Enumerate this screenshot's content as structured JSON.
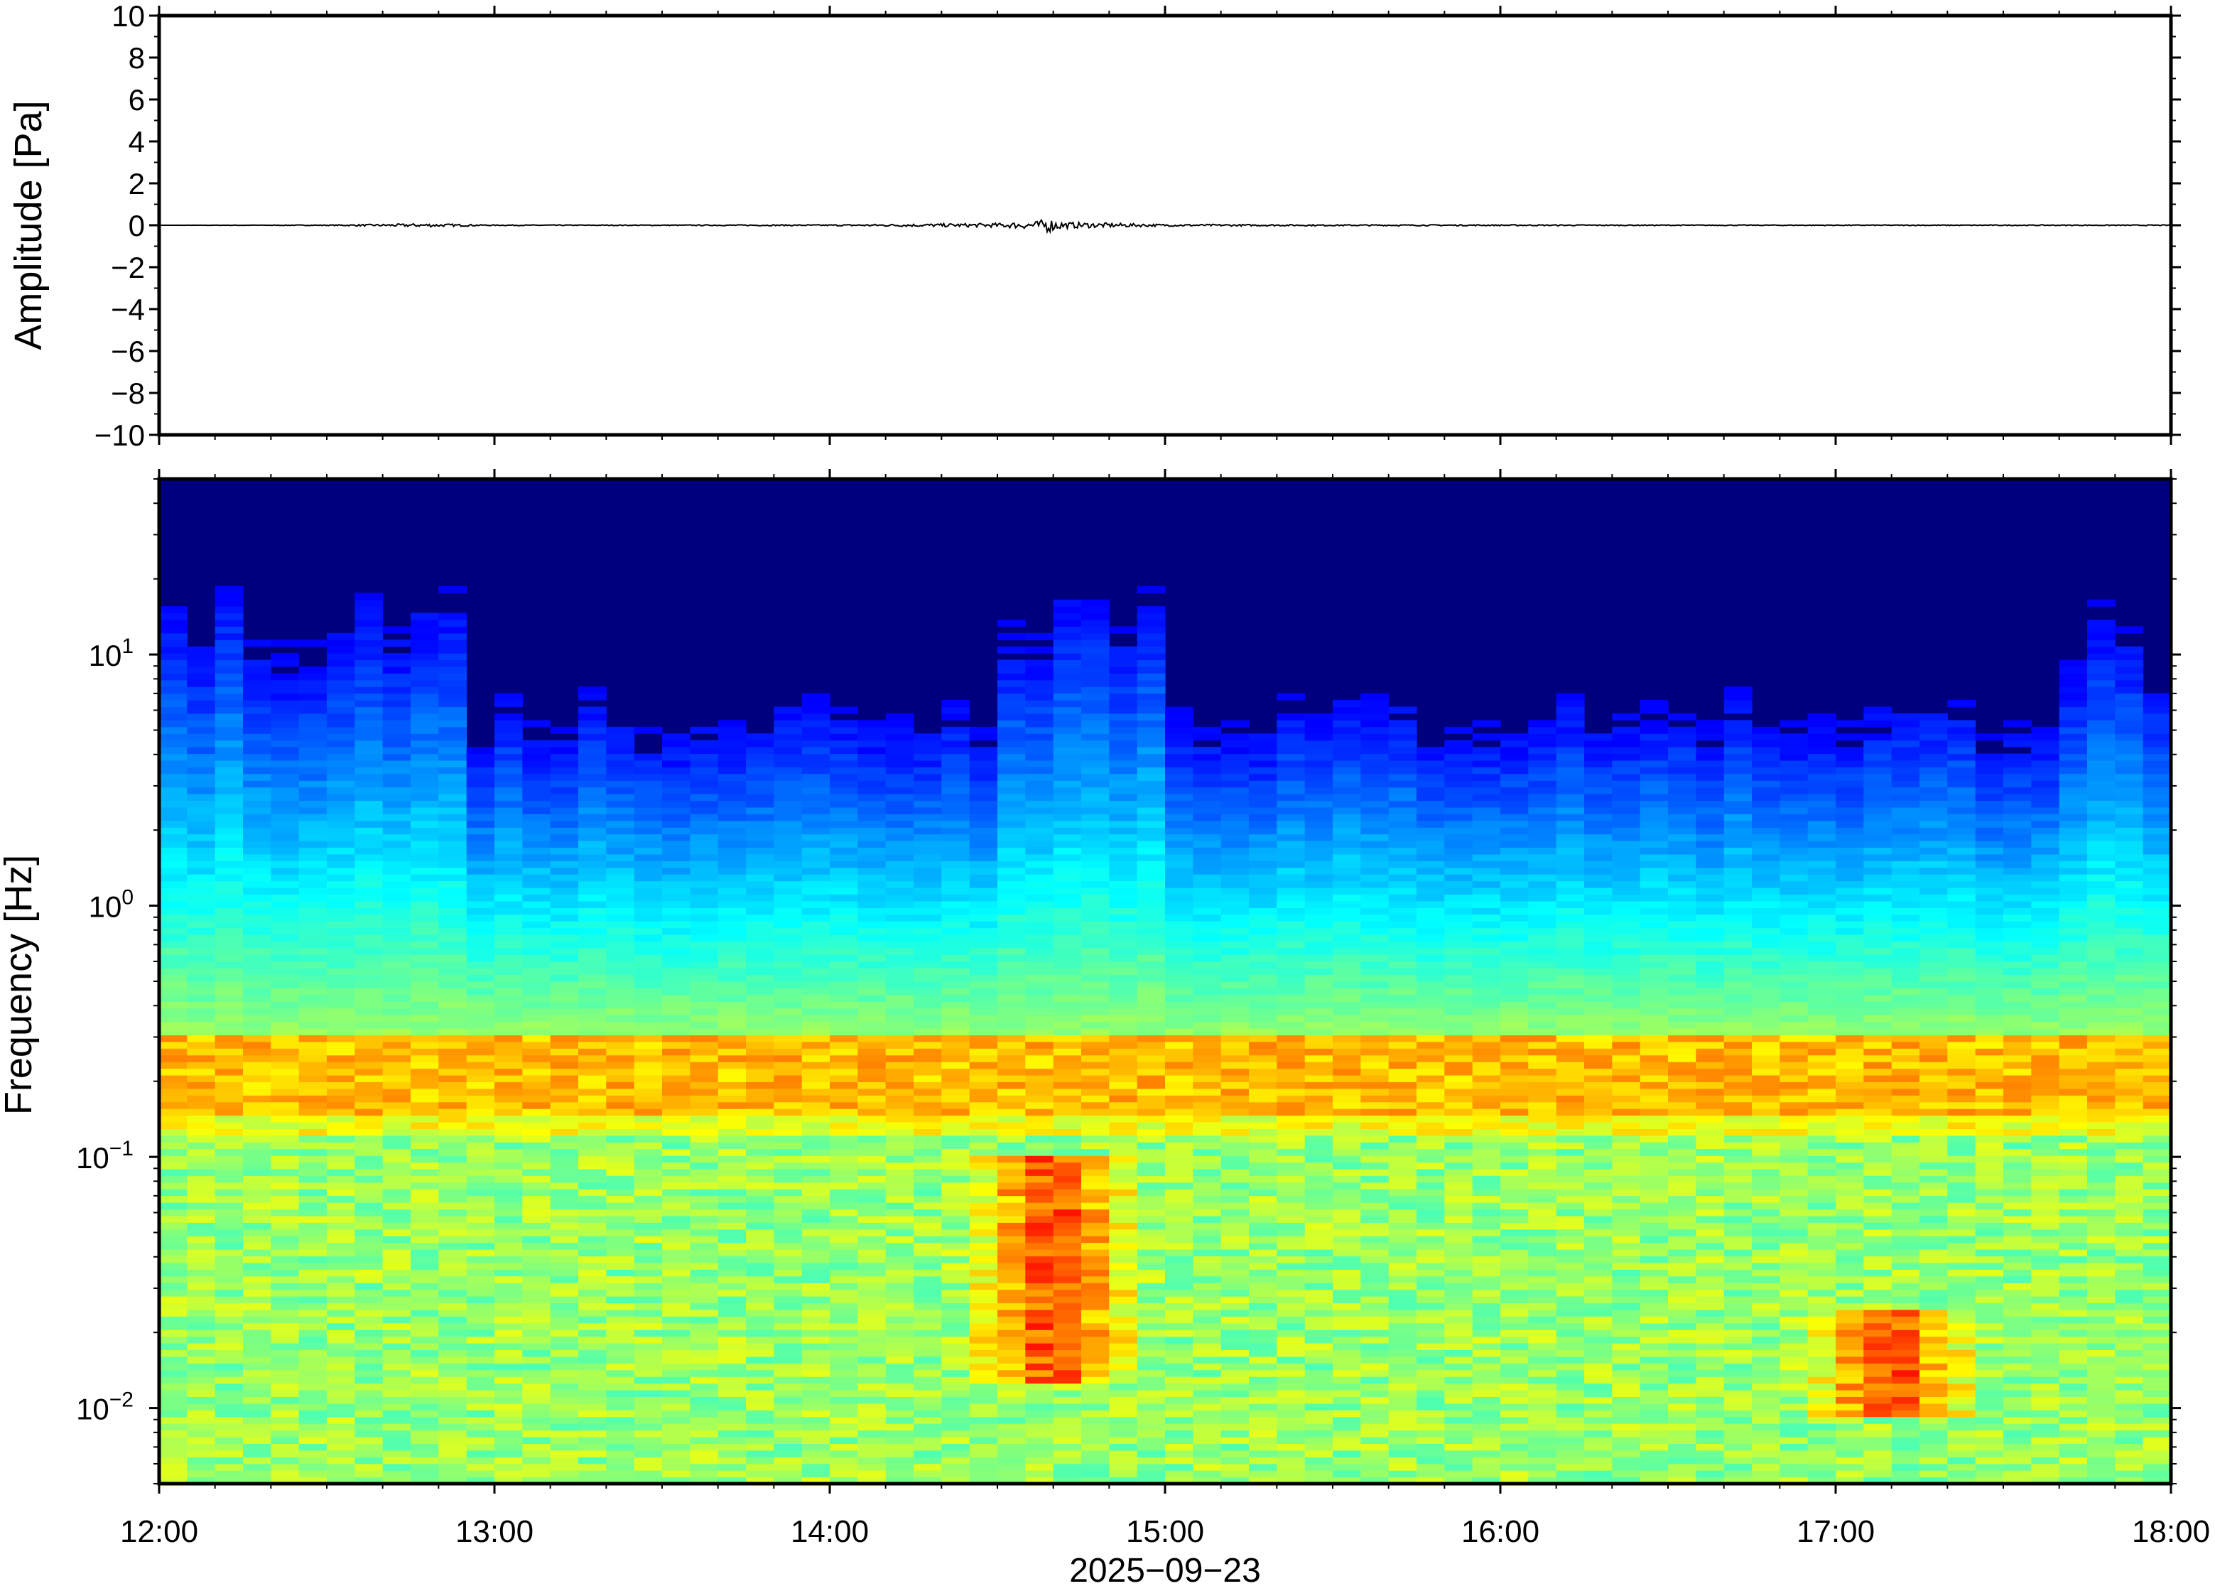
{
  "chart_data": [
    {
      "type": "line",
      "ylabel": "Amplitude [Pa]",
      "ylim": [
        -10,
        10
      ],
      "yticks": [
        "10",
        "8",
        "6",
        "4",
        "2",
        "0",
        "−2",
        "−4",
        "−6",
        "−8",
        "−10"
      ],
      "ytick_values": [
        10,
        8,
        6,
        4,
        2,
        0,
        -2,
        -4,
        -6,
        -8,
        -10
      ],
      "xlim": [
        "12:00",
        "18:00"
      ],
      "series": [
        {
          "values_note_x_hours": [
            12.0,
            12.5,
            12.8,
            13.0,
            13.5,
            14.0,
            14.5,
            14.62,
            14.65,
            14.7,
            15.0,
            15.5,
            16.0,
            16.5,
            17.0,
            17.5,
            18.0
          ],
          "values": [
            0.0,
            0.02,
            0.08,
            0.02,
            0.02,
            0.03,
            0.1,
            0.2,
            0.35,
            0.15,
            0.05,
            0.03,
            0.03,
            0.02,
            0.02,
            0.02,
            0.02
          ]
        }
      ],
      "line_color": "#000000",
      "grid": false
    },
    {
      "type": "heatmap",
      "ylabel": "Frequency [Hz]",
      "yscale": "log",
      "ylim": [
        0.005,
        50
      ],
      "yticks": [
        {
          "value": 0.01,
          "base": "10",
          "exp": "−2"
        },
        {
          "value": 0.1,
          "base": "10",
          "exp": "−1"
        },
        {
          "value": 1,
          "base": "10",
          "exp": "0"
        },
        {
          "value": 10,
          "base": "10",
          "exp": "1"
        }
      ],
      "xlabel": "2025−09−23",
      "xticks": [
        "12:00",
        "13:00",
        "14:00",
        "15:00",
        "16:00",
        "17:00",
        "18:00"
      ],
      "xlim": [
        "12:00",
        "18:00"
      ],
      "colormap": "jet",
      "colors": {
        "low": "#00007f",
        "mid": "#7fff7f",
        "high": "#ff7f00"
      },
      "events": [
        {
          "time": "14:40",
          "freq_range_hz": [
            0.02,
            0.1
          ],
          "intensity": "high"
        },
        {
          "time": "17:10",
          "freq_range_hz": [
            0.015,
            0.025
          ],
          "intensity": "high"
        }
      ],
      "microseism_band_hz": [
        0.15,
        0.3
      ],
      "grid": false
    }
  ]
}
